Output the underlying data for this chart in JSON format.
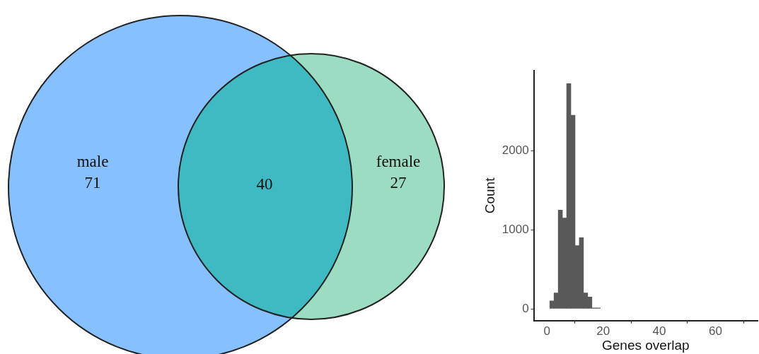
{
  "chart_data": [
    {
      "type": "other",
      "categories": [
        "male",
        null,
        "female"
      ],
      "values": [
        71,
        40,
        27
      ],
      "colors": [
        "#87c0ff",
        "#3fbac2",
        "#9cdcc1"
      ],
      "data_labels": true
    },
    {
      "type": "histogram",
      "bins": [
        1,
        2.5,
        4,
        5.5,
        7,
        8.5,
        10,
        11.5,
        13,
        14.5,
        16,
        17.5,
        19
      ],
      "values": [
        100,
        200,
        1250,
        1150,
        2850,
        2450,
        800,
        900,
        200,
        150,
        10,
        10
      ],
      "color": "#595959",
      "xlabel": "Genes overlap",
      "ylabel": "Count",
      "xlim": [
        -4.7,
        75
      ],
      "ylim": [
        -150,
        3015
      ],
      "xticks": [
        0,
        20,
        40,
        60
      ],
      "yticks": [
        0,
        1000,
        2000
      ],
      "grid": false,
      "legend": false
    }
  ]
}
